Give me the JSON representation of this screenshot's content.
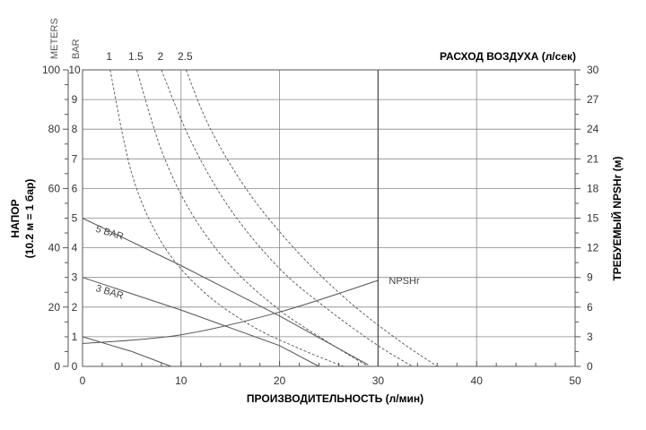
{
  "chart_data": {
    "type": "line",
    "title": "",
    "xlabel": "ПРОИЗВОДИТЕЛЬНОСТЬ (л/мин)",
    "xlim": [
      0,
      50
    ],
    "x_ticks": [
      "0",
      "10",
      "20",
      "30",
      "40",
      "50"
    ],
    "ylabel_left": "НАПОР",
    "ylabel_left_sub": "(10.2 м = 1 бар)",
    "ylabel_right": "ТРЕБУЕМЫЙ NPSHr (м)",
    "y_units_meters": "METERS",
    "y_units_bar": "BAR",
    "y_meters_lim": [
      0,
      100
    ],
    "y_meters_ticks": [
      "0",
      "20",
      "40",
      "60",
      "80",
      "100"
    ],
    "y_bar_lim": [
      0,
      10
    ],
    "y_bar_ticks": [
      "0",
      "1",
      "2",
      "3",
      "4",
      "5",
      "6",
      "7",
      "8",
      "9",
      "10"
    ],
    "y_right_lim": [
      0,
      30
    ],
    "y_right_ticks": [
      "0",
      "3",
      "6",
      "9",
      "12",
      "15",
      "18",
      "21",
      "24",
      "27",
      "30"
    ],
    "top_axis_label": "РАСХОД ВОЗДУХА (л/сек)",
    "grid": true,
    "colors": {
      "grid_major": "#888888",
      "grid_bold": "#555555",
      "curve": "#555555",
      "text": "#333333"
    },
    "pressure_curves": [
      {
        "label": "5 BAR",
        "x": [
          0,
          10,
          20,
          29
        ],
        "y_bar": [
          5.0,
          3.4,
          1.7,
          0.05
        ]
      },
      {
        "label": "3 BAR",
        "x": [
          0,
          10,
          20,
          24
        ],
        "y_bar": [
          3.0,
          1.9,
          0.7,
          0.0
        ]
      },
      {
        "label": "",
        "x": [
          0,
          5,
          9
        ],
        "y_bar": [
          1.0,
          0.5,
          0.0
        ]
      }
    ],
    "air_consumption_curves": [
      {
        "label": "1",
        "x": [
          2.8,
          5,
          8,
          12,
          17,
          22,
          26.5
        ],
        "y_bar": [
          10,
          6.5,
          4.2,
          2.6,
          1.4,
          0.6,
          0.0
        ]
      },
      {
        "label": "1.5",
        "x": [
          5.5,
          8,
          11,
          15,
          20,
          25,
          29
        ],
        "y_bar": [
          10,
          7.3,
          5.2,
          3.4,
          1.9,
          0.8,
          0.0
        ]
      },
      {
        "label": "2",
        "x": [
          8.0,
          11,
          15,
          20,
          25,
          30,
          33.5
        ],
        "y_bar": [
          10,
          7.6,
          5.3,
          3.3,
          1.9,
          0.7,
          0.0
        ]
      },
      {
        "label": "2.5",
        "x": [
          10.5,
          13,
          17,
          22,
          27,
          32,
          36
        ],
        "y_bar": [
          10,
          8.0,
          5.8,
          3.8,
          2.2,
          0.9,
          0.0
        ]
      }
    ],
    "npshr_curve": {
      "label": "NPSHr",
      "x": [
        0,
        10,
        20,
        30
      ],
      "y_m": [
        2.3,
        3.2,
        5.5,
        8.7
      ]
    }
  }
}
